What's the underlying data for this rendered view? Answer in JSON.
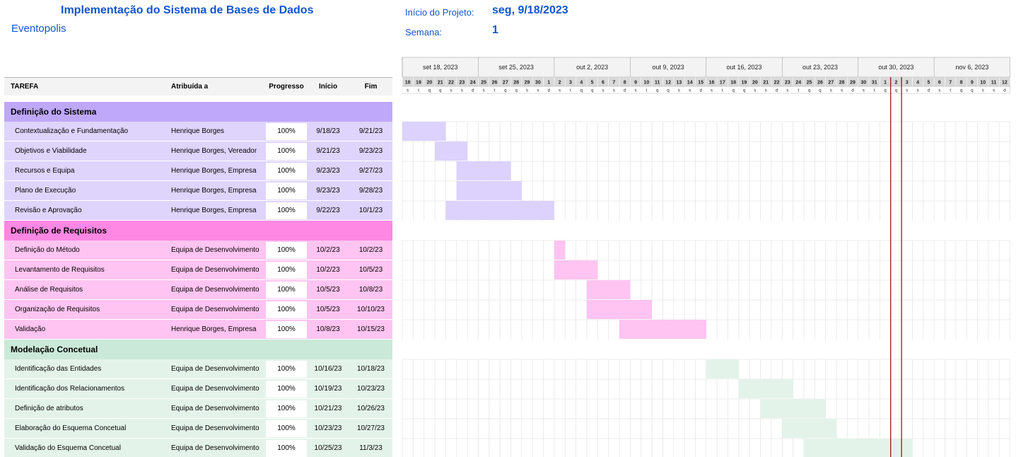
{
  "header": {
    "title": "Implementação do Sistema de Bases de Dados",
    "company": "Eventopolis",
    "start_label": "Início do Projeto:",
    "start_value": "seg, 9/18/2023",
    "week_label": "Semana:",
    "week_value": "1"
  },
  "columns": {
    "task": "TAREFA",
    "assigned": "Atribuída a",
    "progress": "Progresso",
    "start": "Início",
    "end": "Fim"
  },
  "timeline": {
    "weeks": [
      "set 18, 2023",
      "set 25, 2023",
      "out 2, 2023",
      "out 9, 2023",
      "out 16, 2023",
      "out 23, 2023",
      "out 30, 2023",
      "nov 6, 2023"
    ],
    "days": [
      "18",
      "19",
      "20",
      "21",
      "22",
      "23",
      "24",
      "25",
      "26",
      "27",
      "28",
      "29",
      "30",
      "1",
      "2",
      "3",
      "4",
      "5",
      "6",
      "7",
      "8",
      "9",
      "10",
      "11",
      "12",
      "13",
      "14",
      "15",
      "16",
      "17",
      "18",
      "19",
      "20",
      "21",
      "22",
      "23",
      "24",
      "25",
      "26",
      "27",
      "28",
      "29",
      "30",
      "31",
      "1",
      "2",
      "3",
      "4",
      "5",
      "6",
      "7",
      "8",
      "9",
      "10",
      "11",
      "12"
    ],
    "weekdays": [
      "s",
      "t",
      "q",
      "q",
      "s",
      "s",
      "d"
    ],
    "today_index": 45
  },
  "phases": [
    {
      "name": "Definição do Sistema",
      "color": "#bfa8f9",
      "row_color": "#dfd4fc",
      "bar_color": "#ddd2fd",
      "tasks": [
        {
          "name": "Contextualização e Fundamentação",
          "assigned": "Henrique Borges",
          "progress": "100%",
          "start": "9/18/23",
          "end": "9/21/23",
          "s": 0,
          "d": 4
        },
        {
          "name": " Objetivos e Viabilidade",
          "assigned": "Henrique Borges, Vereador",
          "progress": "100%",
          "start": "9/21/23",
          "end": "9/23/23",
          "s": 3,
          "d": 3
        },
        {
          "name": "Recursos e Equipa",
          "assigned": "Henrique Borges, Empresa",
          "progress": "100%",
          "start": "9/23/23",
          "end": "9/27/23",
          "s": 5,
          "d": 5
        },
        {
          "name": "Plano de Execução",
          "assigned": "Henrique Borges, Empresa",
          "progress": "100%",
          "start": "9/23/23",
          "end": "9/28/23",
          "s": 5,
          "d": 6
        },
        {
          "name": "Revisão e Aprovação",
          "assigned": "Henrique Borges, Empresa",
          "progress": "100%",
          "start": "9/22/23",
          "end": "10/1/23",
          "s": 4,
          "d": 10
        }
      ]
    },
    {
      "name": "Definição de Requisitos",
      "color": "#fe88e3",
      "row_color": "#ffc4f1",
      "bar_color": "#ffc4f1",
      "tasks": [
        {
          "name": "Definição do Método",
          "assigned": "Equipa de Desenvolvimento",
          "progress": "100%",
          "start": "10/2/23",
          "end": "10/2/23",
          "s": 14,
          "d": 1
        },
        {
          "name": "Levantamento de Requisitos",
          "assigned": "Equipa de Desenvolvimento",
          "progress": "100%",
          "start": "10/2/23",
          "end": "10/5/23",
          "s": 14,
          "d": 4
        },
        {
          "name": "Análise de Requisitos",
          "assigned": "Equipa de Desenvolvimento",
          "progress": "100%",
          "start": "10/5/23",
          "end": "10/8/23",
          "s": 17,
          "d": 4
        },
        {
          "name": "Organização de Requisitos",
          "assigned": "Equipa de Desenvolvimento",
          "progress": "100%",
          "start": "10/5/23",
          "end": "10/10/23",
          "s": 17,
          "d": 6
        },
        {
          "name": "Validação",
          "assigned": "Henrique Borges, Empresa",
          "progress": "100%",
          "start": "10/8/23",
          "end": "10/15/23",
          "s": 20,
          "d": 8
        }
      ]
    },
    {
      "name": "Modelação Concetual",
      "color": "#cbe9d8",
      "row_color": "#e4f3ea",
      "bar_color": "#e4f3ea",
      "tasks": [
        {
          "name": "Identificação das Entidades",
          "assigned": "Equipa de Desenvolvimento",
          "progress": "100%",
          "start": "10/16/23",
          "end": "10/18/23",
          "s": 28,
          "d": 3
        },
        {
          "name": "Identificação dos Relacionamentos",
          "assigned": "Equipa de Desenvolvimento",
          "progress": "100%",
          "start": "10/19/23",
          "end": "10/23/23",
          "s": 31,
          "d": 5
        },
        {
          "name": "Definição de atributos",
          "assigned": "Equipa de Desenvolvimento",
          "progress": "100%",
          "start": "10/21/23",
          "end": "10/26/23",
          "s": 33,
          "d": 6
        },
        {
          "name": "Elaboração do Esquema Concetual",
          "assigned": "Equipa de Desenvolvimento",
          "progress": "100%",
          "start": "10/23/23",
          "end": "10/27/23",
          "s": 35,
          "d": 5
        },
        {
          "name": "Validação do Esquema Concetual",
          "assigned": "Equipa de Desenvolvimento",
          "progress": "100%",
          "start": "10/25/23",
          "end": "11/3/23",
          "s": 37,
          "d": 10
        }
      ]
    }
  ],
  "colors": {
    "grid": "#e6e6e6",
    "header_bg": "#f3f3f3",
    "day_bg": "#d9d9d9",
    "today_line": "#990000",
    "accent": "#1155cc"
  }
}
